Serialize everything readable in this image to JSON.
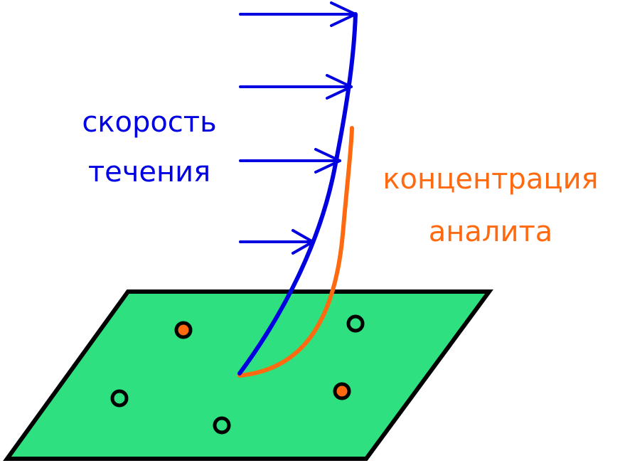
{
  "labels": {
    "velocity": {
      "line1": "скорость",
      "line2": "течения"
    },
    "concentration": {
      "line1": "концентрация",
      "line2": "аналита"
    }
  },
  "colors": {
    "velocity": "#0000e0",
    "concentration": "#ff6a10",
    "surface_fill": "#2ee07f",
    "outline": "#000000",
    "marker_filled": "#ff6a10",
    "marker_empty": "#2ee07f"
  },
  "markers": [
    {
      "name": "marker-filled",
      "filled": true
    },
    {
      "name": "marker-empty",
      "filled": false
    },
    {
      "name": "marker-empty",
      "filled": false
    },
    {
      "name": "marker-filled",
      "filled": true
    },
    {
      "name": "marker-empty",
      "filled": false
    }
  ]
}
